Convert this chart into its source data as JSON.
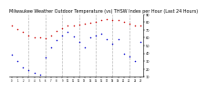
{
  "title": "Milwaukee Weather Outdoor Temperature (vs) THSW Index per Hour (Last 24 Hours)",
  "title_fontsize": 3.5,
  "bg_color": "#ffffff",
  "plot_bg_color": "#ffffff",
  "grid_color": "#bbbbbb",
  "x_hours": [
    0,
    1,
    2,
    3,
    4,
    5,
    6,
    7,
    8,
    9,
    10,
    11,
    12,
    13,
    14,
    15,
    16,
    17,
    18,
    19,
    20,
    21,
    22,
    23
  ],
  "temp_values": [
    76,
    71,
    67,
    63,
    61,
    60,
    59,
    63,
    68,
    72,
    75,
    76,
    77,
    78,
    79,
    80,
    83,
    84,
    83,
    82,
    80,
    78,
    76,
    75
  ],
  "thsw_values": [
    38,
    30,
    22,
    18,
    15,
    13,
    35,
    48,
    57,
    63,
    67,
    62,
    55,
    48,
    60,
    63,
    65,
    58,
    52,
    58,
    40,
    36,
    30,
    55
  ],
  "temp_color": "#cc0000",
  "thsw_color": "#0000cc",
  "ylim_min": 10,
  "ylim_max": 90,
  "yticks": [
    10,
    20,
    30,
    40,
    50,
    60,
    70,
    80,
    90
  ],
  "ytick_labels": [
    "10",
    "20",
    "30",
    "40",
    "50",
    "60",
    "70",
    "80",
    "90"
  ],
  "xtick_labels": [
    "0",
    "1",
    "2",
    "3",
    "4",
    "5",
    "6",
    "7",
    "8",
    "9",
    "10",
    "11",
    "12",
    "13",
    "14",
    "15",
    "16",
    "17",
    "18",
    "19",
    "20",
    "21",
    "22",
    "23"
  ],
  "marker_size": 2.2,
  "vgrid_positions": [
    3,
    6,
    9,
    12,
    15,
    18,
    21
  ]
}
